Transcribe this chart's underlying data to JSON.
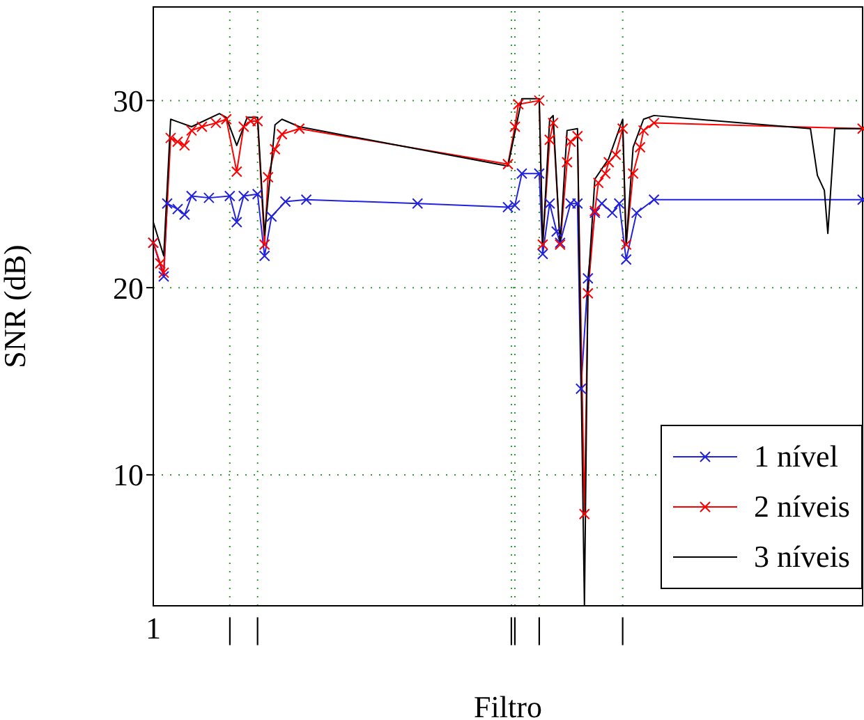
{
  "chart_data": {
    "type": "line",
    "xlabel": "Filtro",
    "ylabel": "SNR (dB)",
    "categories": [
      "1",
      null,
      null,
      null,
      null,
      null,
      null,
      null,
      null,
      null,
      null,
      null,
      null,
      null,
      null,
      null,
      null,
      null,
      null,
      null,
      null,
      null,
      "|",
      null,
      null,
      null,
      null,
      null,
      null,
      null,
      "|",
      null,
      null,
      null,
      null,
      null,
      null,
      null,
      null,
      null,
      null,
      null,
      null,
      null,
      null,
      null,
      null,
      null,
      null,
      null,
      null,
      null,
      null,
      null,
      null,
      null,
      null,
      null,
      null,
      null,
      null,
      null,
      null,
      null,
      null,
      null,
      null,
      null,
      null,
      null,
      null,
      null,
      null,
      null,
      null,
      null,
      null,
      null,
      null,
      null,
      null,
      null,
      null,
      null,
      null,
      null,
      null,
      null,
      null,
      null,
      null,
      null,
      null,
      null,
      null,
      null,
      null,
      null,
      null,
      null,
      null,
      null,
      null,
      "|",
      "|",
      null,
      null,
      null,
      null,
      null,
      null,
      "|",
      null,
      null,
      null,
      null,
      null,
      null,
      null,
      null,
      null,
      null,
      null,
      null,
      null,
      null,
      null,
      null,
      null,
      null,
      null,
      null,
      null,
      null,
      null,
      "|",
      null,
      null,
      null,
      null,
      null,
      null,
      null,
      null,
      null,
      null,
      null,
      null,
      null,
      null,
      null,
      null,
      null,
      null,
      null,
      null,
      null,
      null,
      null,
      null,
      null,
      null,
      null,
      null,
      null,
      null,
      null,
      null,
      null,
      null,
      null,
      null,
      null,
      null,
      null,
      null,
      null,
      null,
      null,
      null,
      null,
      null,
      null,
      null,
      null,
      null,
      null,
      null,
      null,
      null,
      null,
      null,
      null,
      null,
      null,
      null,
      null,
      null,
      null,
      null,
      null,
      null,
      null,
      null,
      null
    ],
    "ylim": [
      3,
      35
    ],
    "yticks": [
      10,
      20,
      30
    ],
    "grid": true,
    "legend": "bottom right",
    "line_style": "solid",
    "series": [
      {
        "name": "1 nível",
        "color": "#2222dd",
        "marker": "cross",
        "values": [
          22.4,
          null,
          null,
          20.6,
          24.5,
          null,
          null,
          24.2,
          null,
          23.9,
          null,
          24.9,
          null,
          null,
          null,
          null,
          24.8,
          null,
          null,
          null,
          null,
          null,
          24.9,
          null,
          23.5,
          null,
          24.9,
          null,
          null,
          null,
          25.0,
          null,
          21.7,
          null,
          23.8,
          null,
          null,
          null,
          24.6,
          null,
          null,
          null,
          null,
          null,
          24.7,
          null,
          null,
          null,
          null,
          null,
          null,
          null,
          null,
          null,
          null,
          null,
          null,
          null,
          null,
          null,
          null,
          null,
          null,
          null,
          null,
          null,
          null,
          null,
          null,
          null,
          null,
          null,
          null,
          null,
          null,
          null,
          24.5,
          null,
          null,
          null,
          null,
          null,
          null,
          null,
          null,
          null,
          null,
          null,
          null,
          null,
          null,
          null,
          null,
          null,
          null,
          null,
          null,
          null,
          null,
          null,
          null,
          null,
          24.3,
          null,
          24.4,
          null,
          26.1,
          null,
          null,
          null,
          null,
          26.1,
          21.8,
          null,
          24.5,
          null,
          23.0,
          22.4,
          null,
          null,
          24.5,
          null,
          24.5,
          14.6,
          null,
          20.5,
          null,
          24.0,
          null,
          24.5,
          null,
          null,
          24.0,
          null,
          24.5,
          null,
          21.5,
          null,
          null,
          24.0,
          null,
          null,
          null,
          null,
          24.7,
          null,
          null,
          null,
          null,
          null,
          null,
          null,
          null,
          null,
          null,
          null,
          null,
          null,
          null,
          null,
          null,
          null,
          null,
          null,
          null,
          null,
          null,
          null,
          null,
          null,
          null,
          null,
          null,
          null,
          null,
          null,
          null,
          null,
          null,
          null,
          null,
          null,
          null,
          null,
          null,
          null,
          null,
          null,
          null,
          null,
          null,
          null,
          null,
          null,
          null,
          null,
          null,
          null,
          null,
          null,
          null,
          null,
          null,
          null,
          24.7
        ]
      },
      {
        "name": "2 níveis",
        "color": "#ff0000",
        "marker": "cross",
        "values": [
          22.4,
          null,
          21.3,
          20.8,
          null,
          28.0,
          null,
          27.8,
          null,
          27.6,
          null,
          28.4,
          null,
          null,
          28.6,
          null,
          null,
          null,
          28.8,
          null,
          null,
          29.0,
          null,
          null,
          26.2,
          null,
          28.6,
          null,
          28.9,
          null,
          28.9,
          null,
          22.3,
          25.9,
          null,
          27.4,
          null,
          28.2,
          null,
          null,
          null,
          null,
          28.5,
          null,
          null,
          null,
          null,
          null,
          null,
          null,
          null,
          null,
          null,
          null,
          null,
          null,
          null,
          null,
          null,
          null,
          null,
          null,
          null,
          null,
          null,
          null,
          null,
          null,
          null,
          null,
          null,
          null,
          null,
          null,
          null,
          null,
          null,
          null,
          null,
          null,
          null,
          null,
          null,
          null,
          null,
          null,
          null,
          null,
          null,
          null,
          null,
          null,
          null,
          null,
          null,
          null,
          null,
          null,
          null,
          null,
          null,
          null,
          26.6,
          null,
          28.6,
          29.8,
          null,
          null,
          null,
          null,
          null,
          30.0,
          22.3,
          null,
          27.9,
          28.8,
          null,
          22.3,
          null,
          26.7,
          27.8,
          null,
          28.1,
          null,
          7.9,
          19.7,
          null,
          24.1,
          25.6,
          null,
          26.1,
          26.7,
          null,
          27.1,
          null,
          28.5,
          22.3,
          null,
          26.1,
          null,
          27.5,
          28.4,
          null,
          null,
          28.8,
          null,
          null,
          null,
          null,
          null,
          null,
          null,
          null,
          null,
          null,
          null,
          null,
          null,
          null,
          null,
          null,
          null,
          null,
          null,
          null,
          null,
          null,
          null,
          null,
          null,
          null,
          null,
          null,
          null,
          null,
          null,
          null,
          null,
          null,
          null,
          null,
          null,
          null,
          null,
          null,
          null,
          null,
          null,
          null,
          null,
          null,
          null,
          null,
          null,
          null,
          null,
          null,
          null,
          null,
          null,
          null,
          null,
          null,
          null,
          28.5
        ]
      },
      {
        "name": "3 níveis",
        "color": "#000000",
        "marker": "none",
        "values": [
          23.5,
          null,
          null,
          21.7,
          null,
          29.0,
          null,
          null,
          null,
          null,
          null,
          28.6,
          null,
          null,
          null,
          null,
          null,
          null,
          null,
          29.3,
          null,
          29.1,
          null,
          null,
          27.6,
          null,
          null,
          29.1,
          null,
          null,
          29.1,
          null,
          22.8,
          null,
          null,
          28.7,
          null,
          29.0,
          null,
          null,
          null,
          null,
          28.6,
          null,
          null,
          null,
          null,
          null,
          null,
          null,
          null,
          null,
          null,
          null,
          null,
          null,
          null,
          null,
          null,
          null,
          null,
          null,
          null,
          null,
          null,
          null,
          null,
          null,
          null,
          null,
          null,
          null,
          null,
          null,
          null,
          null,
          null,
          null,
          null,
          null,
          null,
          null,
          null,
          null,
          null,
          null,
          null,
          null,
          null,
          null,
          null,
          null,
          null,
          null,
          null,
          null,
          null,
          null,
          null,
          null,
          null,
          null,
          26.5,
          null,
          null,
          null,
          30.1,
          null,
          null,
          null,
          null,
          30.1,
          22.3,
          null,
          29.0,
          29.2,
          null,
          22.3,
          null,
          28.4,
          null,
          null,
          28.5,
          null,
          3,
          20.0,
          null,
          25.8,
          null,
          null,
          null,
          26.9,
          null,
          null,
          null,
          29.0,
          22.3,
          null,
          27.5,
          null,
          null,
          29.0,
          null,
          null,
          29.2,
          null,
          null,
          null,
          null,
          null,
          29.1,
          null,
          null,
          null,
          null,
          null,
          null,
          null,
          null,
          null,
          null,
          null,
          null,
          null,
          null,
          null,
          null,
          null,
          null,
          null,
          null,
          null,
          null,
          null,
          null,
          null,
          null,
          null,
          null,
          null,
          null,
          null,
          null,
          null,
          null,
          null,
          null,
          null,
          null,
          28.5,
          null,
          26.0,
          null,
          25.2,
          22.9,
          null,
          28.5,
          null,
          null,
          null,
          null,
          null,
          null,
          null,
          28.5
        ]
      }
    ]
  }
}
